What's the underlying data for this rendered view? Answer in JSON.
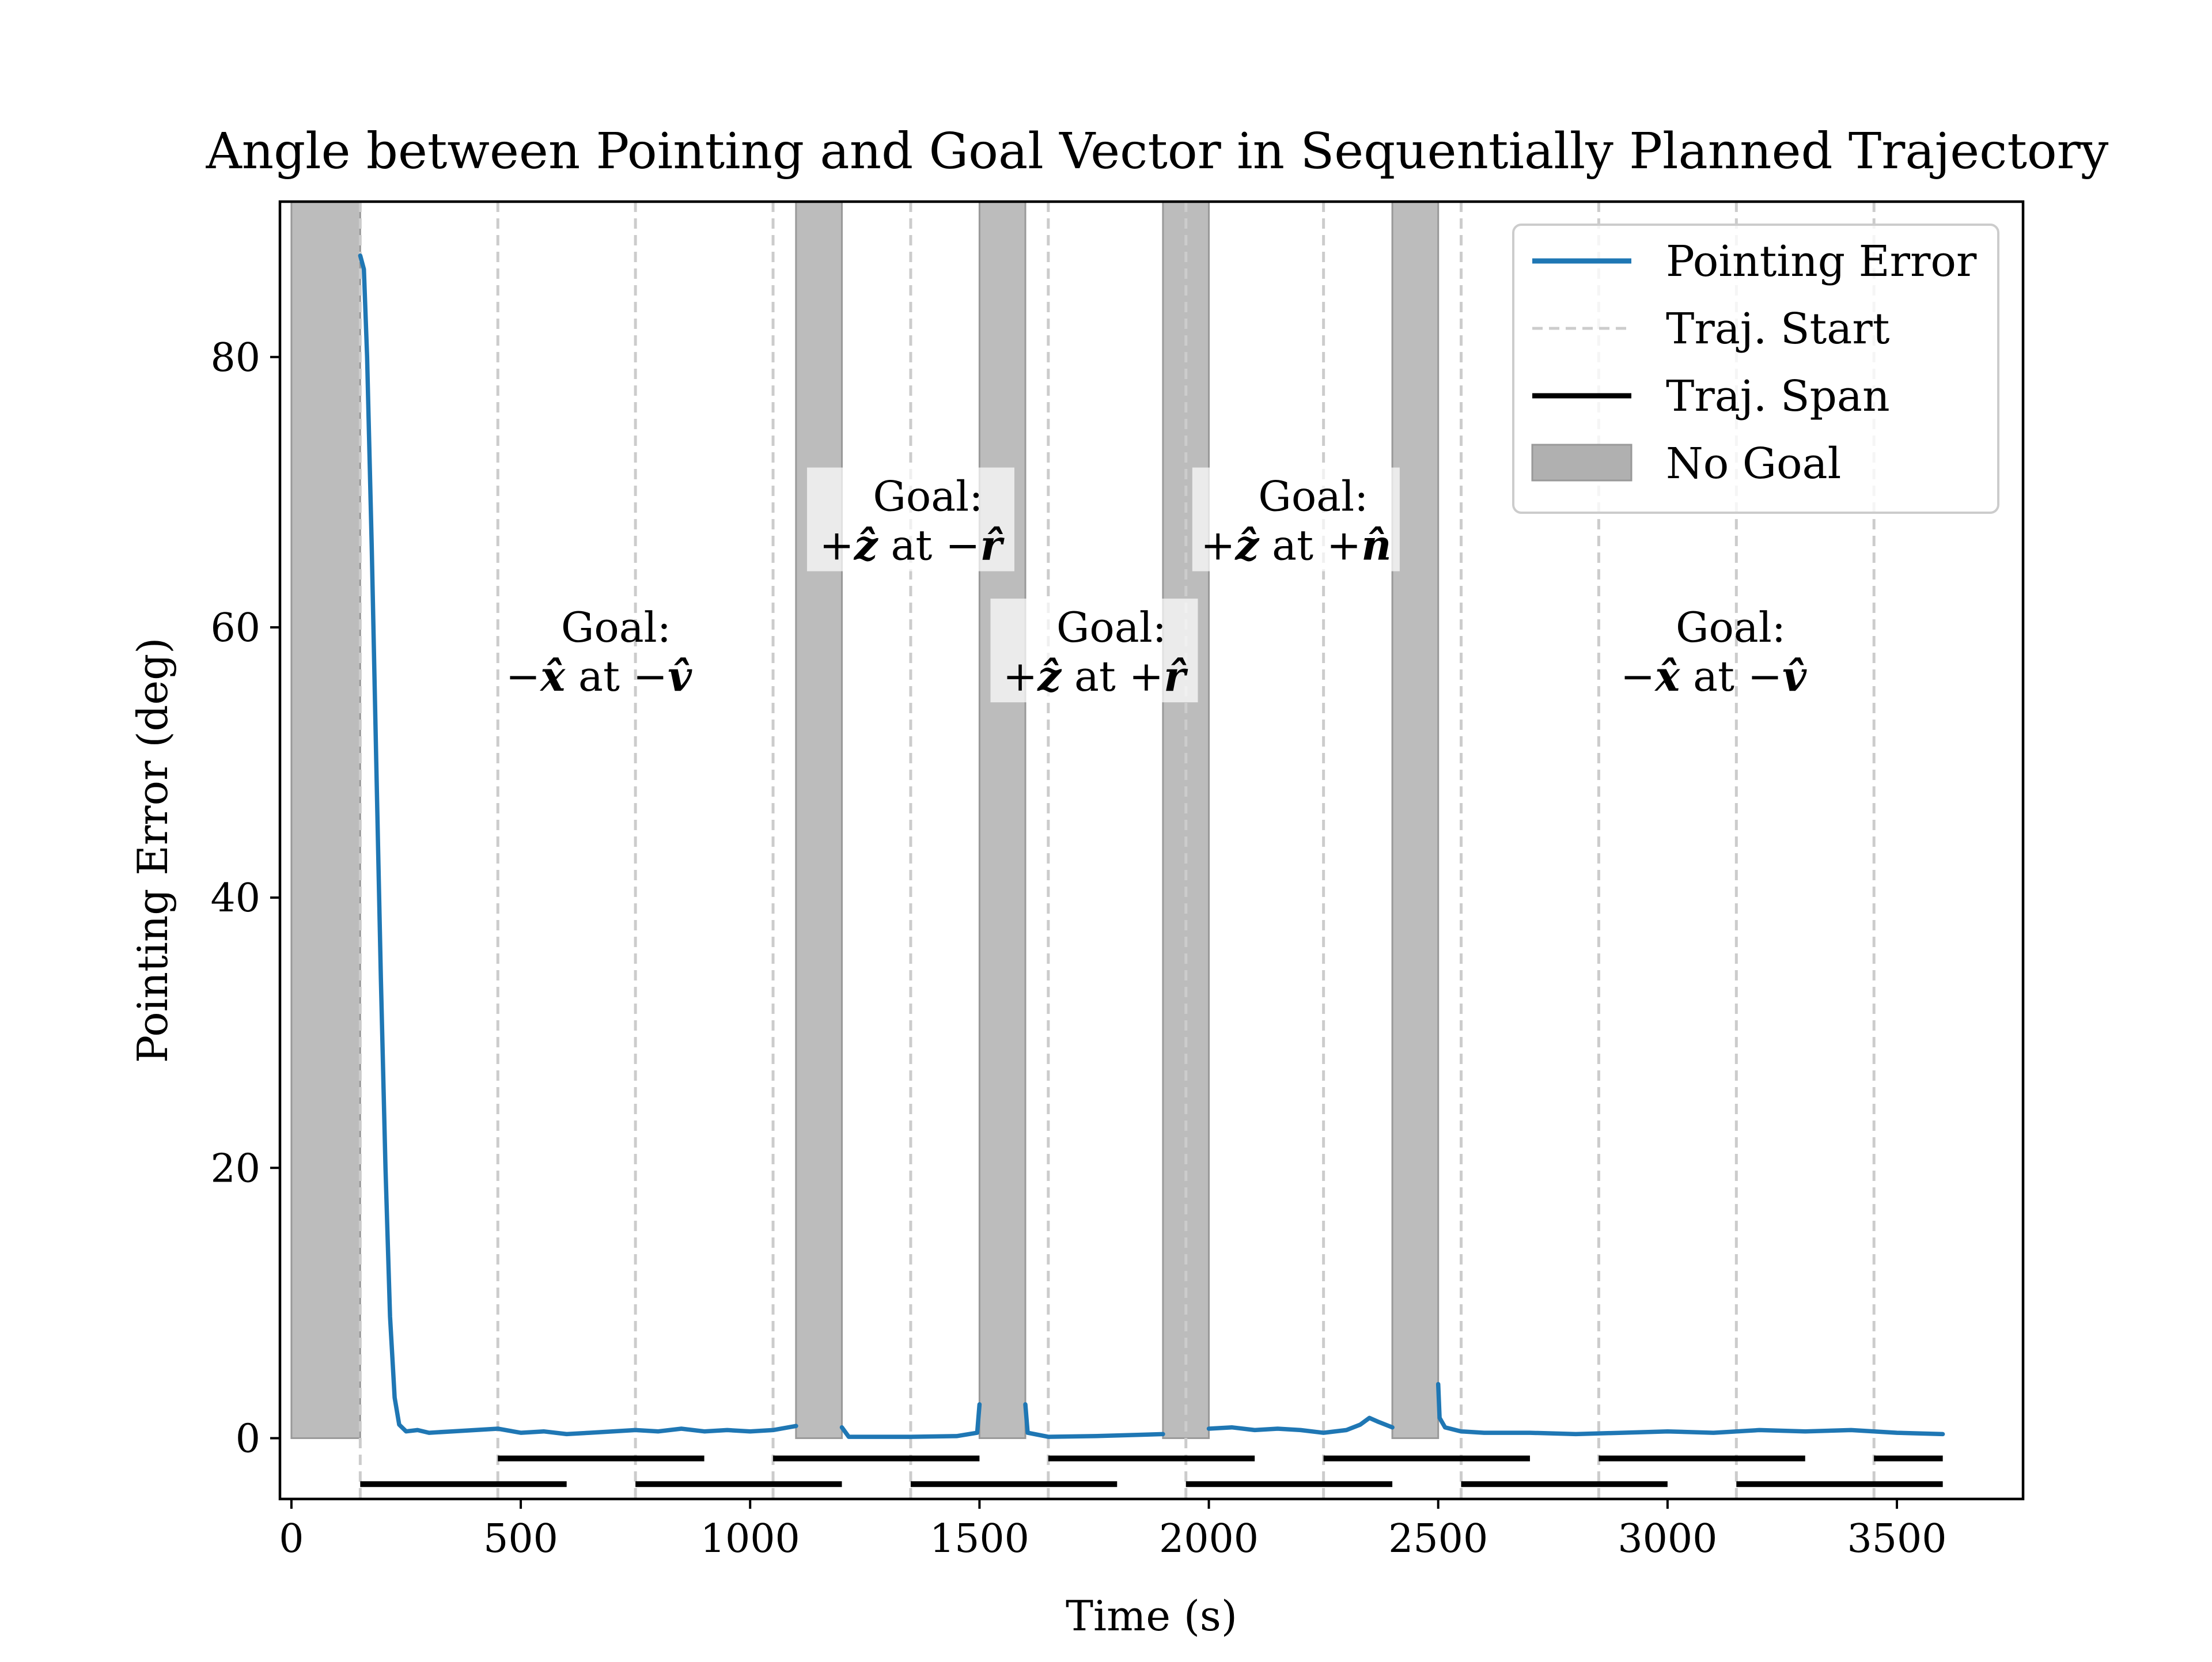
{
  "chart_data": {
    "type": "line",
    "title": "Angle between Pointing and Goal Vector in Sequentially Planned Trajectory",
    "xlabel": "Time (s)",
    "ylabel": "Pointing Error (deg)",
    "xlim": [
      -25,
      3775
    ],
    "ylim": [
      -4.5,
      91.5
    ],
    "xticks": [
      0,
      500,
      1000,
      1500,
      2000,
      2500,
      3000,
      3500
    ],
    "yticks": [
      0,
      20,
      40,
      60,
      80
    ],
    "grid": false,
    "legend_position": "top-right",
    "legend": [
      {
        "label": "Pointing Error",
        "kind": "line",
        "color": "#1f77b4"
      },
      {
        "label": "Traj. Start",
        "kind": "dashed",
        "color": "#cccccc"
      },
      {
        "label": "Traj. Span",
        "kind": "line",
        "color": "#000000"
      },
      {
        "label": "No Goal",
        "kind": "patch",
        "color": "#b0b0b0"
      }
    ],
    "no_goal_spans": [
      [
        0,
        150
      ],
      [
        1100,
        1200
      ],
      [
        1500,
        1600
      ],
      [
        1900,
        2000
      ],
      [
        2400,
        2500
      ]
    ],
    "traj_starts": [
      150,
      450,
      750,
      1050,
      1350,
      1650,
      1950,
      2250,
      2550,
      2850,
      3150,
      3450
    ],
    "traj_spans_upper": [
      [
        450,
        900
      ],
      [
        1050,
        1500
      ],
      [
        1650,
        2100
      ],
      [
        2250,
        2700
      ],
      [
        2850,
        3300
      ],
      [
        3450,
        3600
      ]
    ],
    "traj_spans_lower": [
      [
        150,
        600
      ],
      [
        750,
        1200
      ],
      [
        1350,
        1800
      ],
      [
        1950,
        2400
      ],
      [
        2550,
        3000
      ],
      [
        3150,
        3600
      ]
    ],
    "series": [
      {
        "name": "Pointing Error",
        "color": "#1f77b4",
        "segments": [
          {
            "x": [
              150,
              158,
              165,
              175,
              185,
              195,
              205,
              215,
              225,
              235,
              250,
              275,
              300,
              350,
              400,
              450,
              500,
              550,
              600,
              650,
              700,
              750,
              800,
              850,
              900,
              950,
              1000,
              1050,
              1100
            ],
            "y": [
              87.5,
              86.5,
              80,
              66,
              50,
              34,
              20,
              9,
              3,
              1,
              0.5,
              0.6,
              0.4,
              0.5,
              0.6,
              0.7,
              0.4,
              0.5,
              0.3,
              0.4,
              0.5,
              0.6,
              0.5,
              0.7,
              0.5,
              0.6,
              0.5,
              0.6,
              0.9
            ]
          },
          {
            "x": [
              1200,
              1215,
              1250,
              1350,
              1450,
              1495,
              1500
            ],
            "y": [
              0.8,
              0.1,
              0.1,
              0.1,
              0.15,
              0.4,
              2.5
            ]
          },
          {
            "x": [
              1600,
              1605,
              1650,
              1750,
              1850,
              1900
            ],
            "y": [
              2.5,
              0.4,
              0.1,
              0.15,
              0.25,
              0.3
            ]
          },
          {
            "x": [
              2000,
              2050,
              2100,
              2150,
              2200,
              2250,
              2300,
              2330,
              2350,
              2370,
              2400
            ],
            "y": [
              0.7,
              0.8,
              0.6,
              0.7,
              0.6,
              0.4,
              0.6,
              1.0,
              1.5,
              1.2,
              0.8
            ]
          },
          {
            "x": [
              2500,
              2503,
              2515,
              2550,
              2600,
              2700,
              2800,
              2900,
              3000,
              3100,
              3200,
              3300,
              3400,
              3500,
              3600
            ],
            "y": [
              4.0,
              1.5,
              0.8,
              0.5,
              0.4,
              0.4,
              0.3,
              0.4,
              0.5,
              0.4,
              0.6,
              0.5,
              0.6,
              0.4,
              0.3
            ]
          }
        ]
      }
    ],
    "annotations": [
      {
        "id": "goal-1",
        "x": 670,
        "y": 58.5,
        "boxed": false,
        "line1": "Goal:",
        "sign1": "−",
        "vec": "x̂",
        "at": " at ",
        "sign2": "−",
        "ref": "v̂"
      },
      {
        "id": "goal-2",
        "x": 1350,
        "y": 68.2,
        "boxed": true,
        "line1": "Goal:",
        "sign1": "+",
        "vec": "ẑ",
        "at": " at ",
        "sign2": "−",
        "ref": "r̂"
      },
      {
        "id": "goal-3",
        "x": 1750,
        "y": 58.5,
        "boxed": true,
        "line1": "Goal:",
        "sign1": "+",
        "vec": "ẑ",
        "at": " at ",
        "sign2": "+",
        "ref": "r̂"
      },
      {
        "id": "goal-4",
        "x": 2190,
        "y": 68.2,
        "boxed": true,
        "line1": "Goal:",
        "sign1": "+",
        "vec": "ẑ",
        "at": " at ",
        "sign2": "+",
        "ref": "n̂"
      },
      {
        "id": "goal-5",
        "x": 3100,
        "y": 58.5,
        "boxed": false,
        "line1": "Goal:",
        "sign1": "−",
        "vec": "x̂",
        "at": " at ",
        "sign2": "−",
        "ref": "v̂"
      }
    ]
  }
}
